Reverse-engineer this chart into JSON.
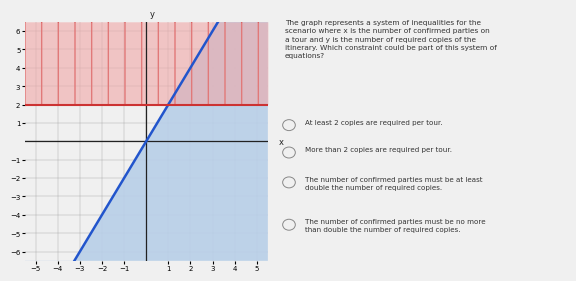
{
  "xlim": [
    -5.5,
    5.5
  ],
  "ylim": [
    -6.5,
    6.5
  ],
  "xticks": [
    -5,
    -4,
    -3,
    -2,
    -1,
    1,
    2,
    3,
    4,
    5
  ],
  "yticks": [
    -6,
    -5,
    -4,
    -3,
    -2,
    -1,
    1,
    2,
    3,
    4,
    5,
    6
  ],
  "xlabel": "x",
  "ylabel": "y",
  "blue_line_slope": 2,
  "blue_line_intercept": 0,
  "red_line_y": 2,
  "blue_fill_color": "#b8cfe8",
  "red_fill_color": "#f0a8a8",
  "blue_line_color": "#2255cc",
  "red_line_color": "#cc3333",
  "grid_color": "#999999",
  "axis_color": "#222222",
  "background_color": "#f0f0f0",
  "text_color": "#333333",
  "question_text": "The graph represents a system of inequalities for the\nscenario where x is the number of confirmed parties on\na tour and y is the number of required copies of the\nitinerary. Which constraint could be part of this system of\nequations?",
  "choices": [
    "At least 2 copies are required per tour.",
    "More than 2 copies are required per tour.",
    "The number of confirmed parties must be at least\ndouble the number of required copies.",
    "The number of confirmed parties must be no more\nthan double the number of required copies."
  ]
}
